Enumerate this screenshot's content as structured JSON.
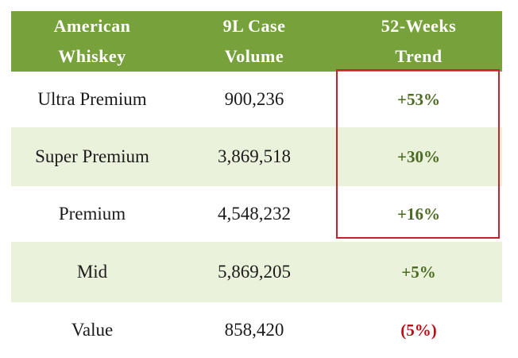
{
  "table": {
    "headers": [
      [
        "American",
        "Whiskey"
      ],
      [
        "9L Case",
        "Volume"
      ],
      [
        "52-Weeks",
        "Trend"
      ]
    ],
    "rows": [
      {
        "segment": "Ultra Premium",
        "volume": "900,236",
        "trend": "+53%"
      },
      {
        "segment": "Super Premium",
        "volume": "3,869,518",
        "trend": "+30%"
      },
      {
        "segment": "Premium",
        "volume": "4,548,232",
        "trend": "+16%"
      },
      {
        "segment": "Mid",
        "volume": "5,869,205",
        "trend": "+5%"
      },
      {
        "segment": "Value",
        "volume": "858,420",
        "trend": "(5%)"
      }
    ]
  },
  "colors": {
    "header_bg": "#77a13b",
    "shaded_row_bg": "#eaf2dc",
    "positive_trend": "#4c6b22",
    "negative_trend": "#b7111a",
    "highlight_border": "#c0242d"
  }
}
